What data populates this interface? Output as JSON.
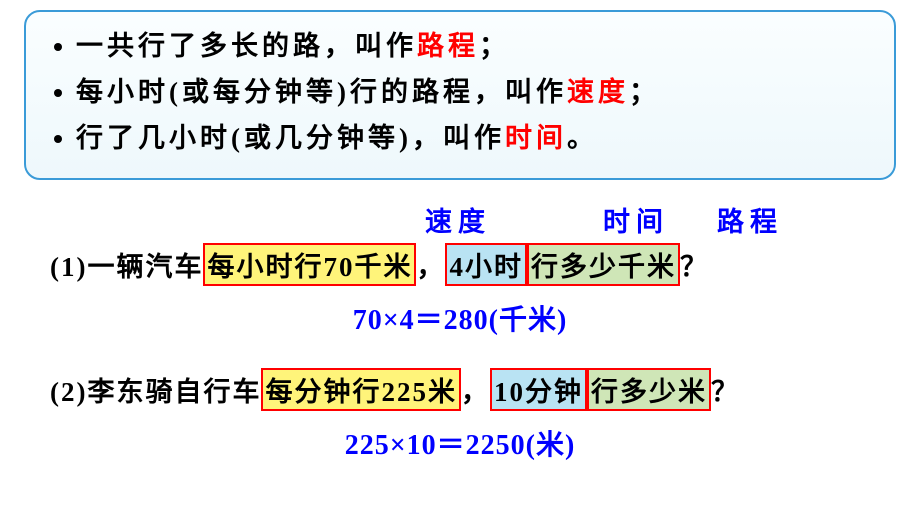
{
  "colors": {
    "keyword": "#ff0000",
    "label": "#0000ff",
    "equation": "#0000ff",
    "box_border": "#3a9bd8",
    "hl_speed_bg": "#fff47a",
    "hl_time_bg": "#b9e3f3",
    "hl_dist_bg": "#cfe6b7",
    "hl_border": "#ff0000",
    "background": "#ffffff"
  },
  "font_sizes": {
    "body": 27,
    "equation": 28
  },
  "defs": {
    "l1a": "一共行了多长的路，叫作",
    "l1b": "路程",
    "l1c": "；",
    "l2a": "每小时(或每分钟等)行的路程，叫作",
    "l2b": "速度",
    "l2c": "；",
    "l3a": "行了几小时(或几分钟等)，叫作",
    "l3b": "时间",
    "l3c": "。"
  },
  "labels": {
    "speed": "速度",
    "time": "时间",
    "dist": "路程"
  },
  "p1": {
    "idx": "(1)",
    "pre": "一辆汽车",
    "speed_a": "每小时行",
    "speed_n": "70",
    "speed_b": "千米",
    "m1": "，",
    "time_n": "4",
    "time_u": "小时",
    "dist": "行多少千米",
    "end": "？",
    "eq_a": "70×4＝280",
    "eq_u": "(千米)"
  },
  "p2": {
    "idx": "(2)",
    "pre": "李东骑自行车",
    "speed_a": "每分钟行",
    "speed_n": "225",
    "speed_b": "米",
    "m1": "，",
    "time_n": "10",
    "time_u": "分钟",
    "dist": "行多少米",
    "end": "？",
    "eq_a": "225×10＝2250",
    "eq_u": "(米)"
  }
}
